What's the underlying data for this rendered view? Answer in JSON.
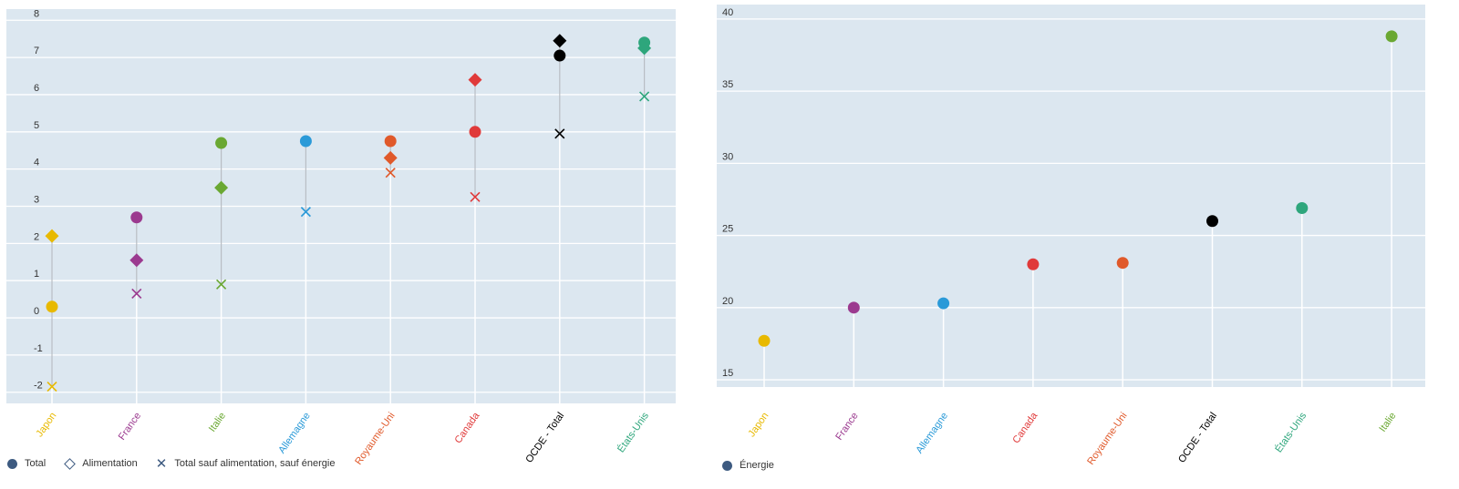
{
  "chart_data": [
    {
      "type": "scatter",
      "ylim": [
        -2.3,
        8.3
      ],
      "yticks": [
        -2,
        -1,
        0,
        1,
        2,
        3,
        4,
        5,
        6,
        7,
        8
      ],
      "grid": true,
      "legend_position": "bottom-left",
      "categories": [
        "Japon",
        "France",
        "Italie",
        "Allemagne",
        "Royaume-Uni",
        "Canada",
        "OCDE - Total",
        "États-Unis"
      ],
      "category_colors": [
        "#e8b900",
        "#9b3a8f",
        "#6aa832",
        "#2a9ad8",
        "#e0592a",
        "#e03a3a",
        "#000000",
        "#2ea67c"
      ],
      "series": [
        {
          "name": "Total",
          "marker": "circle",
          "values": [
            0.3,
            2.7,
            4.7,
            4.75,
            4.75,
            5.0,
            7.05,
            7.4
          ]
        },
        {
          "name": "Alimentation",
          "marker": "diamond",
          "values": [
            2.2,
            1.55,
            3.5,
            null,
            4.3,
            6.4,
            7.45,
            7.25
          ]
        },
        {
          "name": "Total sauf alimentation, sauf énergie",
          "marker": "x",
          "values": [
            -1.85,
            0.65,
            0.9,
            2.85,
            3.9,
            3.25,
            4.95,
            5.95
          ]
        }
      ]
    },
    {
      "type": "scatter",
      "ylim": [
        14.5,
        41
      ],
      "yticks": [
        15,
        20,
        25,
        30,
        35,
        40
      ],
      "grid": true,
      "legend_position": "bottom-left",
      "categories": [
        "Japon",
        "France",
        "Allemagne",
        "Canada",
        "Royaume-Uni",
        "OCDE - Total",
        "États-Unis",
        "Italie"
      ],
      "category_colors": [
        "#e8b900",
        "#9b3a8f",
        "#2a9ad8",
        "#e03a3a",
        "#e0592a",
        "#000000",
        "#2ea67c",
        "#6aa832"
      ],
      "series": [
        {
          "name": "Énergie",
          "marker": "circle",
          "values": [
            17.7,
            20.0,
            20.3,
            23.0,
            23.1,
            26.0,
            26.9,
            38.8
          ]
        }
      ]
    }
  ],
  "legend_left": {
    "total": "Total",
    "alimentation": "Alimentation",
    "core": "Total sauf alimentation, sauf énergie"
  },
  "legend_right": {
    "energie": "Énergie"
  },
  "legend_color": "#3d5a80",
  "plot_bg": "#dce7f0"
}
